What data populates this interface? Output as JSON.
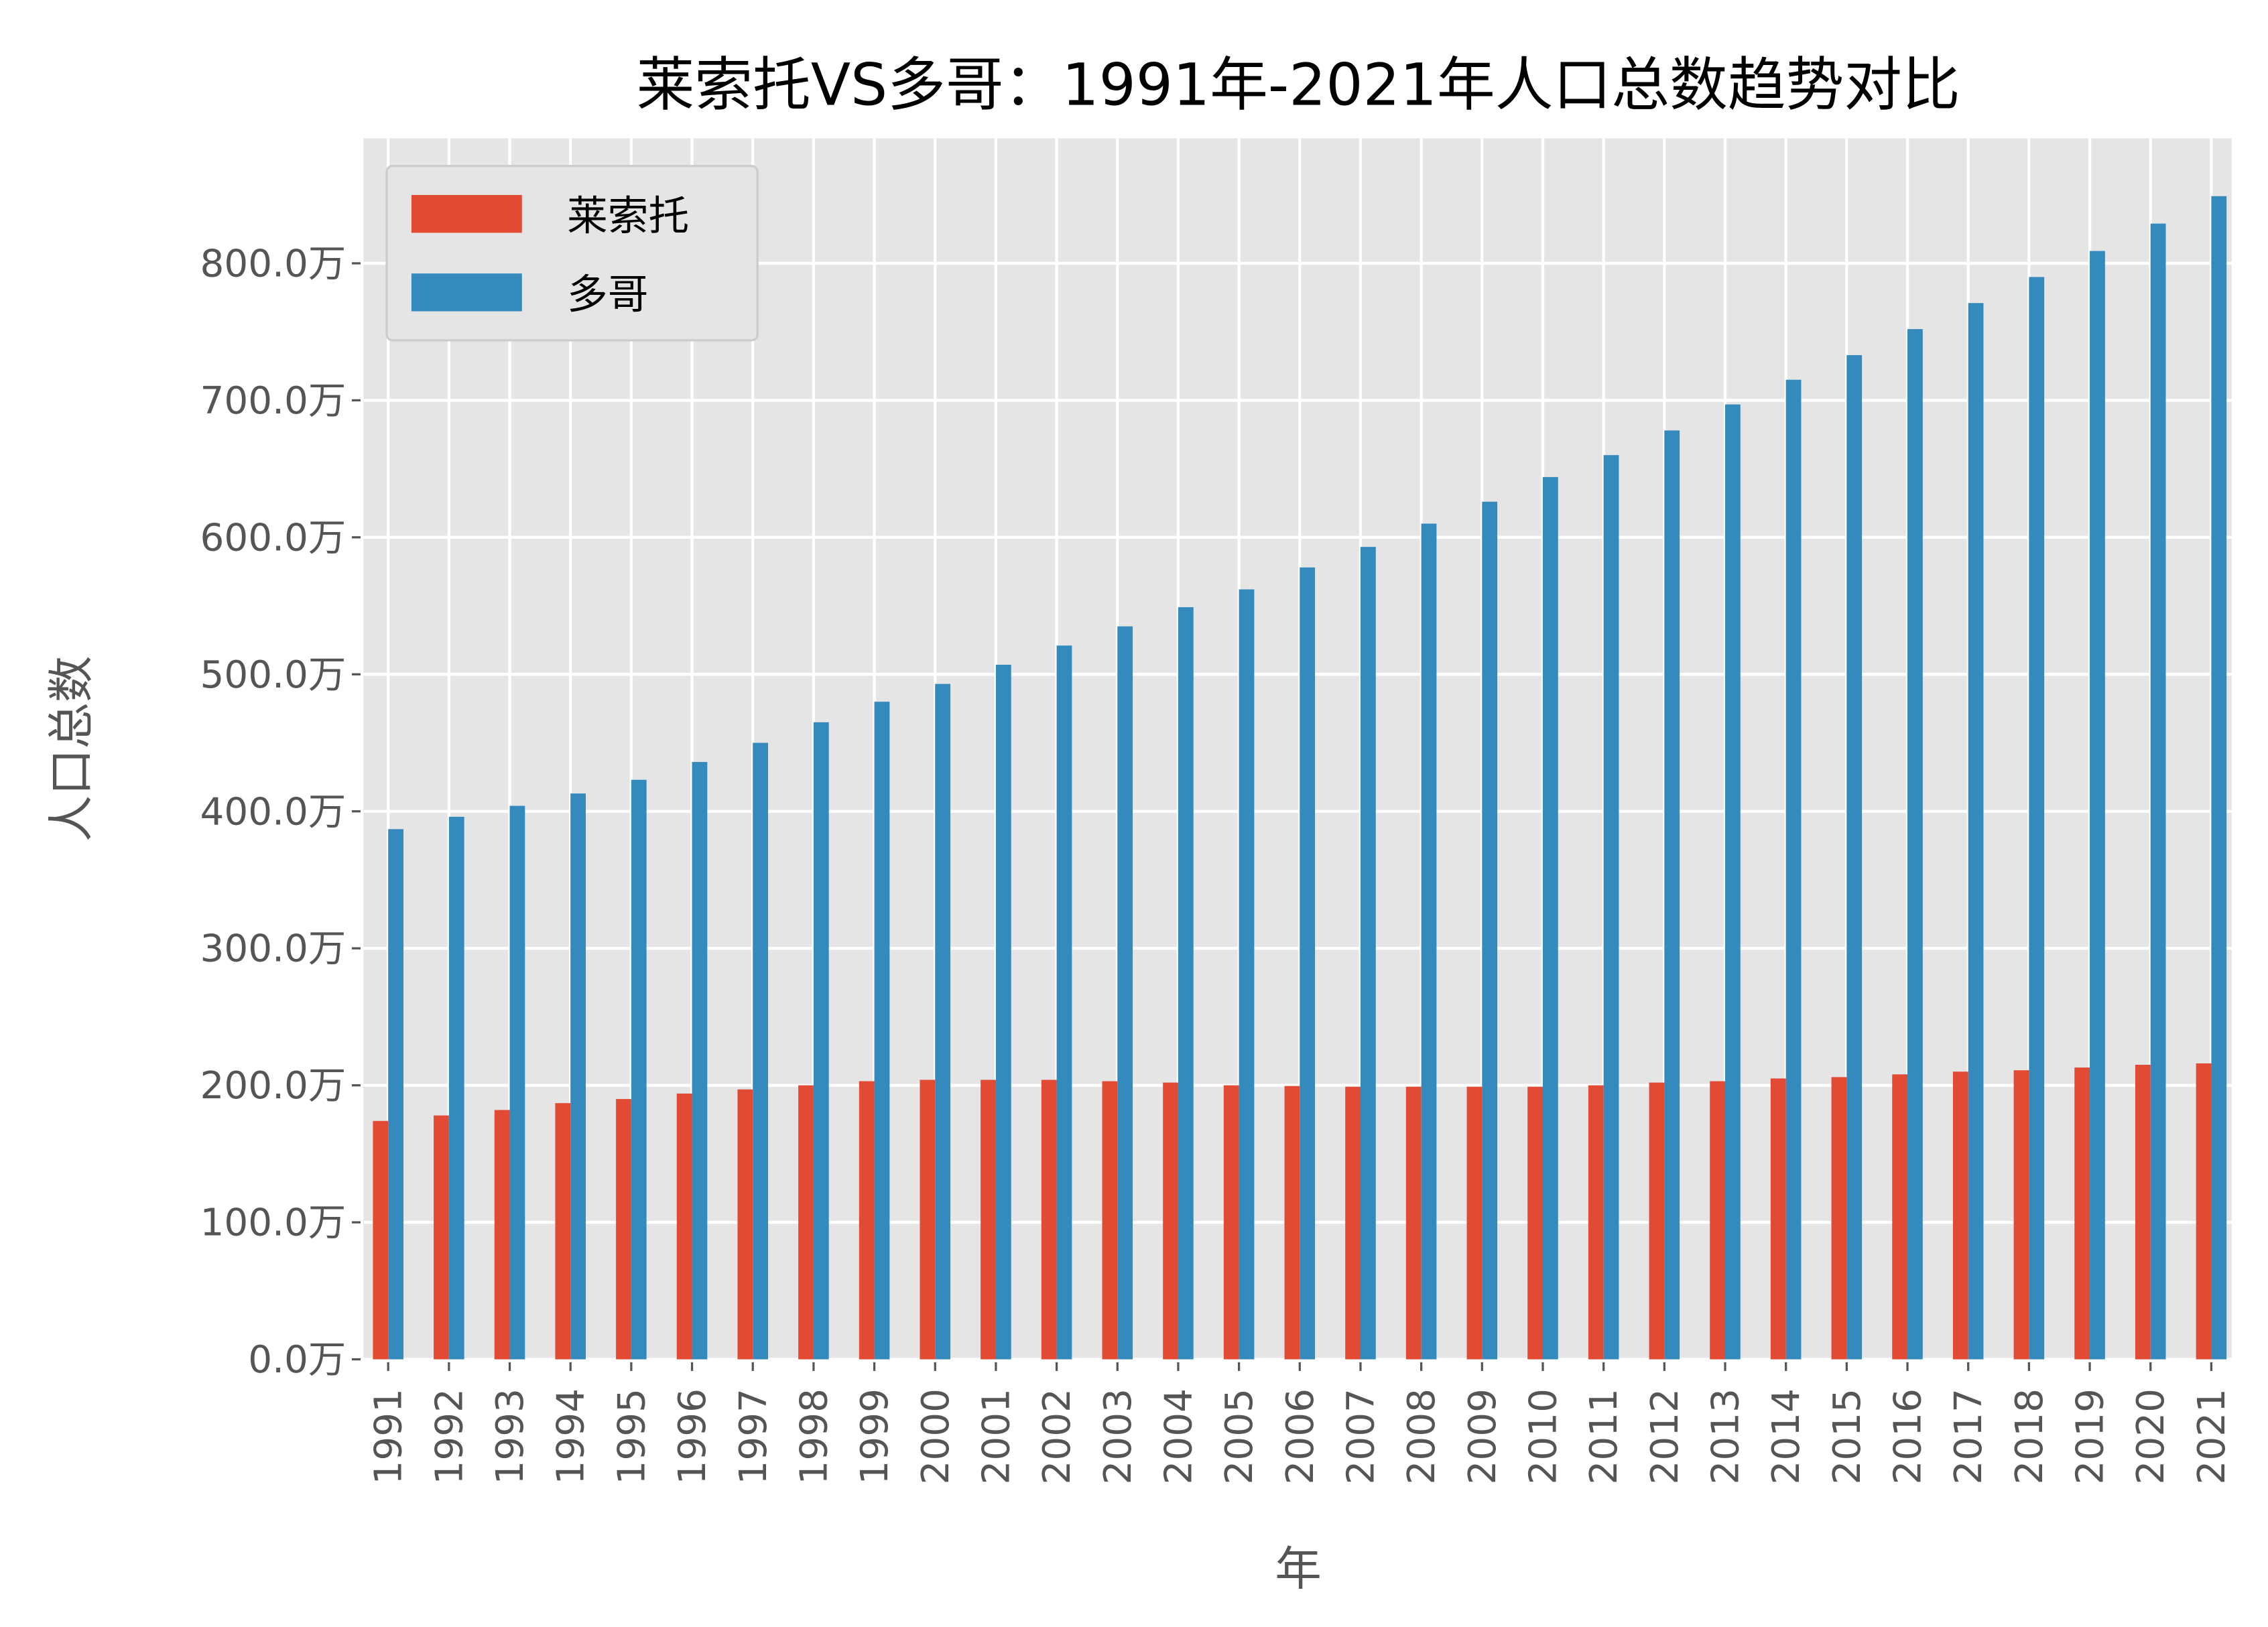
{
  "chart_data": {
    "type": "bar",
    "title": "莱索托VS多哥：1991年-2021年人口总数趋势对比",
    "xlabel": "年",
    "ylabel": "人口总数",
    "ylim": [
      0,
      890
    ],
    "yticks": [
      0,
      100,
      200,
      300,
      400,
      500,
      600,
      700,
      800
    ],
    "ytick_suffix": "万",
    "grid": true,
    "legend_placement": "top-left",
    "categories": [
      "1991",
      "1992",
      "1993",
      "1994",
      "1995",
      "1996",
      "1997",
      "1998",
      "1999",
      "2000",
      "2001",
      "2002",
      "2003",
      "2004",
      "2005",
      "2006",
      "2007",
      "2008",
      "2009",
      "2010",
      "2011",
      "2012",
      "2013",
      "2014",
      "2015",
      "2016",
      "2017",
      "2018",
      "2019",
      "2020",
      "2021"
    ],
    "series": [
      {
        "name": "莱索托",
        "color": "#E24A33",
        "values": [
          174,
          178,
          182,
          187,
          190,
          194,
          197,
          200,
          203,
          204,
          204,
          204,
          203,
          202,
          200,
          199.5,
          199,
          199,
          199,
          199,
          200,
          202,
          203,
          205,
          206,
          208,
          210,
          211,
          213,
          215,
          216
        ]
      },
      {
        "name": "多哥",
        "color": "#348ABD",
        "values": [
          387,
          396,
          404,
          413,
          423,
          436,
          450,
          465,
          480,
          493,
          507,
          521,
          535,
          549,
          562,
          578,
          593,
          610,
          626,
          644,
          660,
          678,
          697,
          715,
          733,
          752,
          771,
          790,
          809,
          829,
          849
        ]
      }
    ],
    "background_color": "#E5E5E5"
  }
}
